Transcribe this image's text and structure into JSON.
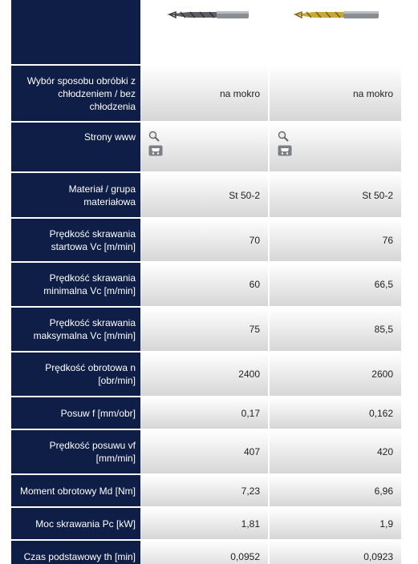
{
  "icons": [
    "search-icon",
    "cart-icon"
  ],
  "products": [
    {
      "name": "drill-1",
      "color": "#777a7e"
    },
    {
      "name": "drill-2",
      "color": "#c8a63a"
    }
  ],
  "rows": [
    {
      "label": "Wybór sposobu obróbki z chłodzeniem / bez chłodzenia",
      "v1": "na mokro",
      "v2": "na mokro"
    },
    {
      "label": "Strony www",
      "v1": "",
      "v2": ""
    },
    {
      "label": "Materiał / grupa materiałowa",
      "v1": "St 50-2",
      "v2": "St 50-2"
    },
    {
      "label": "Prędkość skrawania startowa Vc [m/min]",
      "v1": "70",
      "v2": "76"
    },
    {
      "label": "Prędkość skrawania minimalna Vc [m/min]",
      "v1": "60",
      "v2": "66,5"
    },
    {
      "label": "Prędkość skrawania maksymalna Vc [m/min]",
      "v1": "75",
      "v2": "85,5"
    },
    {
      "label": "Prędkość obrotowa n [obr/min]",
      "v1": "2400",
      "v2": "2600"
    },
    {
      "label": "Posuw f [mm/obr]",
      "v1": "0,17",
      "v2": "0,162"
    },
    {
      "label": "Prędkość posuwu vf [mm/min]",
      "v1": "407",
      "v2": "420"
    },
    {
      "label": "Moment obrotowy Md [Nm]",
      "v1": "7,23",
      "v2": "6,96"
    },
    {
      "label": "Moc skrawania Pc [kW]",
      "v1": "1,81",
      "v2": "1,9"
    },
    {
      "label": "Czas podstawowy th [min]",
      "v1": "0,0952",
      "v2": "0,0923"
    }
  ]
}
